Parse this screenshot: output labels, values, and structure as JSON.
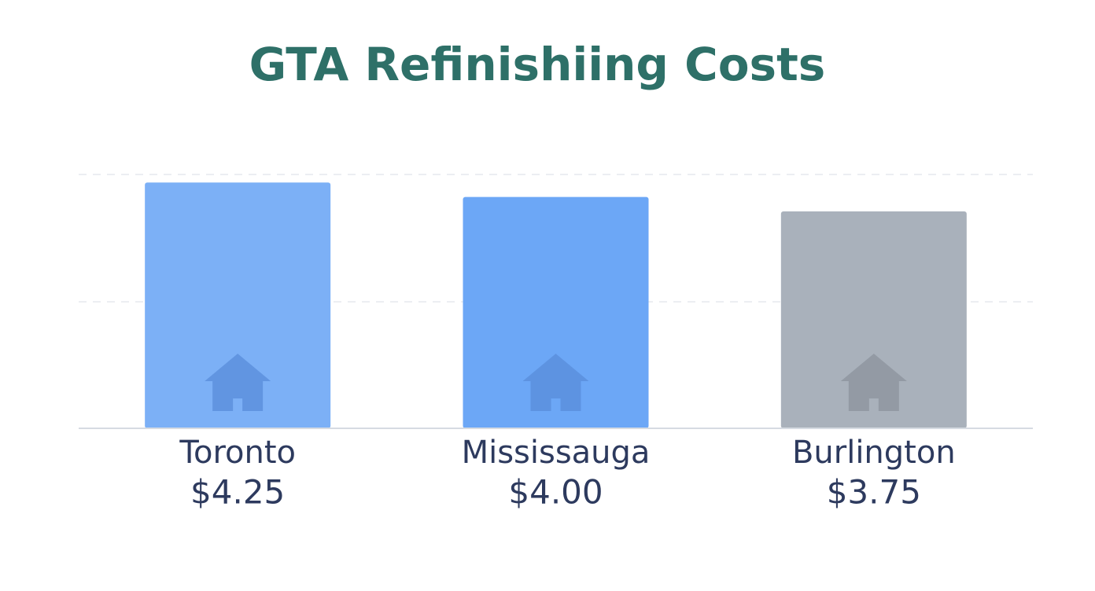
{
  "chart_data": {
    "type": "bar",
    "title": "GTA Refinishiing Costs",
    "categories": [
      "Toronto",
      "Mississauga",
      "Burlington"
    ],
    "values": [
      4.25,
      4.0,
      3.75
    ],
    "value_labels": [
      "$4.25",
      "$4.00",
      "$3.75"
    ],
    "colors": [
      "#7cb0f6",
      "#6ca7f6",
      "#a9b1bb"
    ],
    "ylim": [
      0,
      5
    ]
  }
}
